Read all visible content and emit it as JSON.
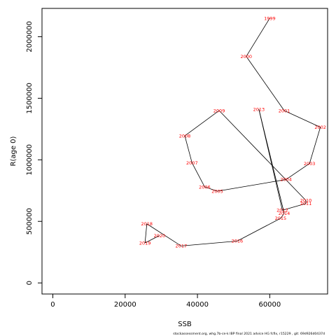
{
  "chart_data": {
    "type": "line",
    "xlabel": "SSB",
    "ylabel": "R(age 0)",
    "xlim": [
      -3000,
      76000
    ],
    "ylim": [
      -90000,
      2230000
    ],
    "x_ticks": [
      0,
      20000,
      40000,
      60000
    ],
    "y_ticks": [
      0,
      500000,
      1000000,
      1500000,
      2000000
    ],
    "grid": false,
    "legend": "none",
    "colors": {
      "line": "#000000",
      "labels": "#ff0000"
    },
    "points": [
      {
        "label": "1999",
        "x": 60000,
        "y": 2150000
      },
      {
        "label": "2000",
        "x": 53500,
        "y": 1840000
      },
      {
        "label": "2001",
        "x": 64000,
        "y": 1400000
      },
      {
        "label": "2002",
        "x": 74000,
        "y": 1265000
      },
      {
        "label": "2003",
        "x": 71000,
        "y": 970000
      },
      {
        "label": "2004",
        "x": 64500,
        "y": 840000
      },
      {
        "label": "2005",
        "x": 45500,
        "y": 745000
      },
      {
        "label": "2006",
        "x": 42000,
        "y": 780000
      },
      {
        "label": "2007",
        "x": 38500,
        "y": 975000
      },
      {
        "label": "2008",
        "x": 36500,
        "y": 1195000
      },
      {
        "label": "2009",
        "x": 46000,
        "y": 1400000
      },
      {
        "label": "2010",
        "x": 70000,
        "y": 670000
      },
      {
        "label": "2011",
        "x": 70000,
        "y": 645000
      },
      {
        "label": "2012",
        "x": 63500,
        "y": 590000
      },
      {
        "label": "2013",
        "x": 57000,
        "y": 1410000
      },
      {
        "label": "2014",
        "x": 64000,
        "y": 565000
      },
      {
        "label": "2015",
        "x": 63000,
        "y": 525000
      },
      {
        "label": "2016",
        "x": 51000,
        "y": 340000
      },
      {
        "label": "2017",
        "x": 35500,
        "y": 300000
      },
      {
        "label": "2018",
        "x": 26000,
        "y": 480000
      },
      {
        "label": "2019",
        "x": 25500,
        "y": 325000
      },
      {
        "label": "2020",
        "x": 29500,
        "y": 385000
      }
    ]
  },
  "footnote": "stockassessment.org,  whg.7b-ce-k  IBP  final  2021  advice  HG  fcfix,  r15229 ,  git:  69d926d0437d"
}
